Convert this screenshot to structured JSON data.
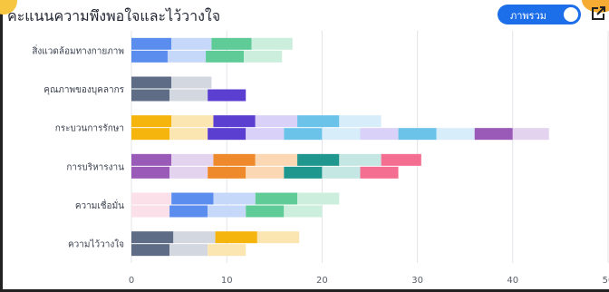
{
  "header": {
    "title": "คะแนนความพึงพอใจและไว้วางใจ",
    "toggle_label": "ภาพรวม",
    "toggle_on": true
  },
  "icons": {
    "export": "external-link-icon"
  },
  "chart_data": {
    "type": "bar",
    "orientation": "horizontal",
    "stacked": true,
    "categories": [
      "สิ่งแวดล้อมทางกายภาพ",
      "คุณภาพของบุคลากร",
      "กระบวนการรักษา",
      "การบริหารงาน",
      "ความเชื่อมั่น",
      "ความไว้วางใจ"
    ],
    "xlim": [
      0,
      50
    ],
    "xticks": [
      0,
      10,
      20,
      30,
      40,
      50
    ],
    "grid": true,
    "legend": "none",
    "rows": [
      {
        "category": "สิ่งแวดล้อมทางกายภาพ",
        "upper": [
          {
            "v": 4.2,
            "c": "#5b8def"
          },
          {
            "v": 4.2,
            "c": "#c6d8fa"
          },
          {
            "v": 4.2,
            "c": "#5fcc98"
          },
          {
            "v": 4.3,
            "c": "#ccefdd"
          }
        ],
        "lower": [
          {
            "v": 3.8,
            "c": "#5b8def"
          },
          {
            "v": 4.0,
            "c": "#c6d8fa"
          },
          {
            "v": 4.0,
            "c": "#5fcc98"
          },
          {
            "v": 4.0,
            "c": "#ccefdd"
          }
        ]
      },
      {
        "category": "คุณภาพของบุคลากร",
        "upper": [
          {
            "v": 4.2,
            "c": "#5e6c86"
          },
          {
            "v": 4.2,
            "c": "#d3d7df"
          }
        ],
        "lower": [
          {
            "v": 4.0,
            "c": "#5e6c86"
          },
          {
            "v": 4.0,
            "c": "#d3d7df"
          },
          {
            "v": 4.0,
            "c": "#5b3fd1"
          }
        ]
      },
      {
        "category": "กระบวนการรักษา",
        "upper": [
          {
            "v": 4.2,
            "c": "#f5b50d"
          },
          {
            "v": 4.4,
            "c": "#fbe5b0"
          },
          {
            "v": 4.4,
            "c": "#5b3fd1"
          },
          {
            "v": 4.4,
            "c": "#d9d1f7"
          },
          {
            "v": 4.4,
            "c": "#6cc3ea"
          },
          {
            "v": 4.4,
            "c": "#d7eefa"
          }
        ],
        "lower": [
          {
            "v": 4.0,
            "c": "#f5b50d"
          },
          {
            "v": 4.0,
            "c": "#fbe5b0"
          },
          {
            "v": 4.0,
            "c": "#5b3fd1"
          },
          {
            "v": 4.0,
            "c": "#d9d1f7"
          },
          {
            "v": 4.0,
            "c": "#6cc3ea"
          },
          {
            "v": 4.0,
            "c": "#d7eefa"
          },
          {
            "v": 4.0,
            "c": "#d9d1f7"
          },
          {
            "v": 4.0,
            "c": "#6cc3ea"
          },
          {
            "v": 4.0,
            "c": "#d7eefa"
          },
          {
            "v": 4.0,
            "c": "#9a5bb8"
          },
          {
            "v": 3.8,
            "c": "#e4d3ef"
          }
        ]
      },
      {
        "category": "การบริหารงาน",
        "upper": [
          {
            "v": 4.2,
            "c": "#9a5bb8"
          },
          {
            "v": 4.4,
            "c": "#e4d3ef"
          },
          {
            "v": 4.4,
            "c": "#ef8a2c"
          },
          {
            "v": 4.4,
            "c": "#fbd7b3"
          },
          {
            "v": 4.4,
            "c": "#1f978e"
          },
          {
            "v": 4.4,
            "c": "#c5e7e3"
          },
          {
            "v": 4.2,
            "c": "#f46e91"
          }
        ],
        "lower": [
          {
            "v": 4.0,
            "c": "#9a5bb8"
          },
          {
            "v": 4.0,
            "c": "#e4d3ef"
          },
          {
            "v": 4.0,
            "c": "#ef8a2c"
          },
          {
            "v": 4.0,
            "c": "#fbd7b3"
          },
          {
            "v": 4.0,
            "c": "#1f978e"
          },
          {
            "v": 4.0,
            "c": "#c5e7e3"
          },
          {
            "v": 4.0,
            "c": "#f46e91"
          }
        ]
      },
      {
        "category": "ความเชื่อมั่น",
        "upper": [
          {
            "v": 4.2,
            "c": "#fbdfe9"
          },
          {
            "v": 4.4,
            "c": "#5b8def"
          },
          {
            "v": 4.4,
            "c": "#c6d8fa"
          },
          {
            "v": 4.4,
            "c": "#5fcc98"
          },
          {
            "v": 4.4,
            "c": "#ccefdd"
          }
        ],
        "lower": [
          {
            "v": 4.0,
            "c": "#fbdfe9"
          },
          {
            "v": 4.0,
            "c": "#5b8def"
          },
          {
            "v": 4.0,
            "c": "#c6d8fa"
          },
          {
            "v": 4.0,
            "c": "#5fcc98"
          },
          {
            "v": 4.0,
            "c": "#ccefdd"
          }
        ]
      },
      {
        "category": "ความไว้วางใจ",
        "upper": [
          {
            "v": 4.4,
            "c": "#5e6c86"
          },
          {
            "v": 4.4,
            "c": "#d3d7df"
          },
          {
            "v": 4.4,
            "c": "#f5b50d"
          },
          {
            "v": 4.4,
            "c": "#fbe5b0"
          }
        ],
        "lower": [
          {
            "v": 4.0,
            "c": "#5e6c86"
          },
          {
            "v": 4.0,
            "c": "#d3d7df"
          },
          {
            "v": 4.0,
            "c": "#fbe5b0"
          }
        ]
      }
    ]
  }
}
